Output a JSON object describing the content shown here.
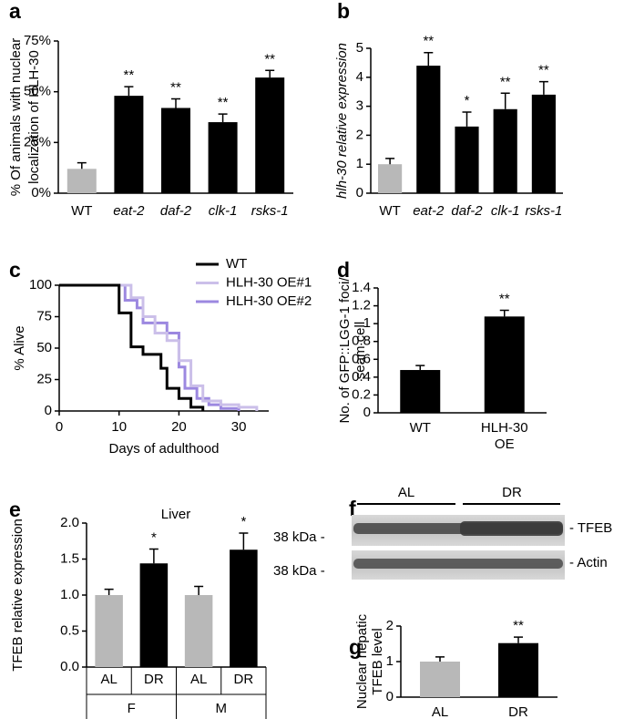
{
  "chart_data": [
    {
      "type": "bar",
      "label": "a",
      "categories": [
        "WT",
        "eat-2",
        "daf-2",
        "clk-1",
        "rsks-1"
      ],
      "values": [
        12,
        48,
        42,
        35,
        57
      ],
      "errors": [
        3,
        4.5,
        4.5,
        4,
        3.5
      ],
      "colors": [
        "#b8b8b8",
        "#000000",
        "#000000",
        "#000000",
        "#000000"
      ],
      "annotations": [
        null,
        "**",
        "**",
        "**",
        "**"
      ],
      "ylabel": [
        "% Of animals with nuclear",
        "localization of HLH-30"
      ],
      "ylim": [
        0,
        75
      ],
      "yticks": [
        {
          "value": 0,
          "label": "0%"
        },
        {
          "value": 25,
          "label": "25%"
        },
        {
          "value": 50,
          "label": "50%"
        },
        {
          "value": 75,
          "label": "75%"
        }
      ]
    },
    {
      "type": "bar",
      "label": "b",
      "categories": [
        "WT",
        "eat-2",
        "daf-2",
        "clk-1",
        "rsks-1"
      ],
      "values": [
        1,
        4.4,
        2.3,
        2.9,
        3.4
      ],
      "errors": [
        0.2,
        0.45,
        0.5,
        0.55,
        0.45
      ],
      "colors": [
        "#b8b8b8",
        "#000000",
        "#000000",
        "#000000",
        "#000000"
      ],
      "annotations": [
        null,
        "**",
        "*",
        "**",
        "**"
      ],
      "ylabel": [
        "hlh-30 relative expression"
      ],
      "ylim": [
        0,
        5
      ],
      "yticks": [
        0,
        1,
        2,
        3,
        4,
        5
      ]
    },
    {
      "type": "line",
      "label": "c",
      "xlabel": "Days of adulthood",
      "ylabel": [
        "% Alive"
      ],
      "xlim": [
        0,
        35
      ],
      "xticks": [
        0,
        10,
        20,
        30
      ],
      "ylim": [
        0,
        100
      ],
      "yticks": [
        0,
        25,
        50,
        75,
        100
      ],
      "series": [
        {
          "name": "WT",
          "color": "#000000",
          "x": [
            0,
            10,
            12,
            14,
            17,
            18,
            20,
            22,
            24
          ],
          "values": [
            100,
            78,
            51,
            45,
            34,
            18,
            10,
            3,
            0
          ]
        },
        {
          "name": "HLH-30 OE#1",
          "color": "#cbbfe9",
          "x": [
            0,
            12,
            14,
            16,
            18,
            20,
            22,
            24,
            27,
            30,
            33
          ],
          "values": [
            100,
            90,
            75,
            62,
            56,
            40,
            20,
            8,
            5,
            3,
            0
          ]
        },
        {
          "name": "HLH-30 OE#2",
          "color": "#9c88e0",
          "x": [
            0,
            11,
            13,
            14,
            18,
            20,
            21,
            23,
            25,
            27,
            30
          ],
          "values": [
            100,
            88,
            82,
            70,
            62,
            35,
            18,
            10,
            5,
            2,
            0
          ]
        }
      ]
    },
    {
      "type": "bar",
      "label": "d",
      "categories": [
        "WT",
        "HLH-30 OE"
      ],
      "values": [
        0.48,
        1.08
      ],
      "errors": [
        0.05,
        0.07
      ],
      "colors": [
        "#000000",
        "#000000"
      ],
      "annotations": [
        null,
        "**"
      ],
      "ylabel": [
        "No. of GFP::LGG-1 foci/",
        "seam cell"
      ],
      "ylim": [
        0,
        1.4
      ],
      "yticks": [
        0,
        0.2,
        0.4,
        0.6,
        0.8,
        1,
        1.2,
        1.4
      ]
    },
    {
      "type": "bar",
      "label": "e",
      "subtitle": "Liver",
      "categories": [
        "AL",
        "DR",
        "AL",
        "DR"
      ],
      "groups": [
        "F",
        "M"
      ],
      "values": [
        1.0,
        1.44,
        1.0,
        1.63
      ],
      "errors": [
        0.08,
        0.2,
        0.12,
        0.23
      ],
      "colors": [
        "#b8b8b8",
        "#000000",
        "#b8b8b8",
        "#000000"
      ],
      "annotations": [
        null,
        "*",
        null,
        "*"
      ],
      "ylabel": [
        "TFEB relative expression"
      ],
      "ylim": [
        0,
        2
      ],
      "yticks": [
        {
          "value": 0,
          "label": "0.0"
        },
        0.5,
        {
          "value": 1,
          "label": "1.0"
        },
        1.5,
        {
          "value": 2,
          "label": "2.0"
        }
      ]
    },
    {
      "type": "bar",
      "label": "g",
      "categories": [
        "AL",
        "DR"
      ],
      "values": [
        1.0,
        1.52
      ],
      "errors": [
        0.13,
        0.17
      ],
      "colors": [
        "#b8b8b8",
        "#000000"
      ],
      "annotations": [
        null,
        "**"
      ],
      "ylabel": [
        "Nuclear hepatic",
        "TFEB level"
      ],
      "ylim": [
        0,
        2
      ],
      "yticks": [
        0,
        1,
        2
      ]
    }
  ],
  "blot": {
    "label": "f",
    "lanes": [
      "AL",
      "DR"
    ],
    "markers": [
      "38 kDa -",
      "38 kDa -"
    ],
    "bands": [
      "- TFEB",
      "- Actin"
    ]
  }
}
